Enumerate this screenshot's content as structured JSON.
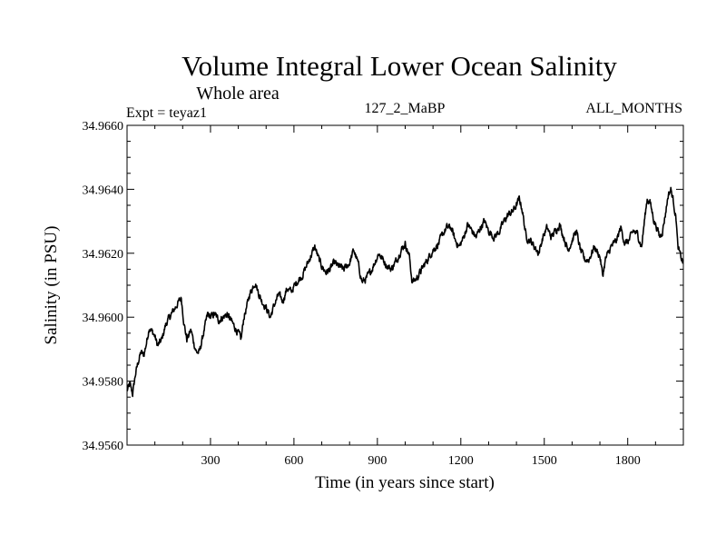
{
  "chart_data": {
    "type": "line",
    "title": "Volume Integral Lower Ocean Salinity",
    "subtitle": "Whole area",
    "experiment_label": "Expt = teyaz1",
    "center_label": "127_2_MaBP",
    "right_label": "ALL_MONTHS",
    "xlabel": "Time (in years since start)",
    "ylabel": "Salinity (in PSU)",
    "xlim": [
      0,
      2000
    ],
    "ylim": [
      34.956,
      34.966
    ],
    "x_ticks": [
      300,
      600,
      900,
      1200,
      1500,
      1800
    ],
    "x_tick_labels": [
      "300",
      "600",
      "900",
      "1200",
      "1500",
      "1800"
    ],
    "y_ticks": [
      34.956,
      34.958,
      34.96,
      34.962,
      34.964,
      34.966
    ],
    "y_tick_labels": [
      "34.9560",
      "34.9580",
      "34.9600",
      "34.9620",
      "34.9640",
      "34.9660"
    ],
    "grid": false,
    "series": [
      {
        "name": "salinity",
        "color": "#000000",
        "x": [
          0,
          10,
          20,
          30,
          40,
          50,
          60,
          70,
          80,
          100,
          110,
          125,
          140,
          160,
          180,
          195,
          205,
          215,
          230,
          240,
          250,
          260,
          280,
          290,
          300,
          315,
          330,
          345,
          360,
          380,
          400,
          410,
          420,
          430,
          440,
          460,
          475,
          485,
          500,
          515,
          530,
          545,
          560,
          575,
          590,
          610,
          630,
          645,
          660,
          675,
          690,
          700,
          715,
          730,
          745,
          760,
          780,
          800,
          815,
          830,
          845,
          860,
          880,
          895,
          905,
          920,
          935,
          950,
          970,
          985,
          1000,
          1015,
          1025,
          1040,
          1060,
          1080,
          1100,
          1120,
          1135,
          1150,
          1165,
          1180,
          1195,
          1210,
          1225,
          1240,
          1255,
          1270,
          1285,
          1300,
          1320,
          1340,
          1355,
          1370,
          1385,
          1400,
          1410,
          1420,
          1435,
          1450,
          1465,
          1480,
          1495,
          1510,
          1525,
          1540,
          1555,
          1570,
          1585,
          1600,
          1615,
          1630,
          1645,
          1660,
          1680,
          1700,
          1710,
          1720,
          1740,
          1760,
          1775,
          1790,
          1805,
          1820,
          1835,
          1850,
          1860,
          1870,
          1880,
          1895,
          1905,
          1915,
          1925,
          1935,
          1945,
          1955,
          1965,
          1975,
          1980,
          1990,
          2000
        ],
        "values": [
          34.9577,
          34.9579,
          34.9576,
          34.9582,
          34.9586,
          34.9589,
          34.9588,
          34.9592,
          34.9597,
          34.9594,
          34.9591,
          34.9593,
          34.9598,
          34.9601,
          34.9604,
          34.9606,
          34.9598,
          34.9593,
          34.9596,
          34.9592,
          34.9589,
          34.9589,
          34.9597,
          34.9601,
          34.96,
          34.9601,
          34.9599,
          34.96,
          34.9601,
          34.9598,
          34.9595,
          34.9593,
          34.96,
          34.9603,
          34.9607,
          34.9611,
          34.9607,
          34.9605,
          34.9603,
          34.96,
          34.9604,
          34.9607,
          34.9605,
          34.9609,
          34.9608,
          34.9611,
          34.9613,
          34.9616,
          34.9619,
          34.9622,
          34.9618,
          34.9616,
          34.9614,
          34.9615,
          34.9617,
          34.9616,
          34.9615,
          34.9617,
          34.9621,
          34.9617,
          34.9611,
          34.9612,
          34.9615,
          34.9618,
          34.962,
          34.9618,
          34.9616,
          34.9615,
          34.9618,
          34.9621,
          34.9623,
          34.9619,
          34.9611,
          34.9612,
          34.9615,
          34.9618,
          34.9621,
          34.9623,
          34.9626,
          34.9628,
          34.9628,
          34.9624,
          34.9622,
          34.9625,
          34.9629,
          34.9627,
          34.9625,
          34.9628,
          34.963,
          34.9627,
          34.9625,
          34.9627,
          34.963,
          34.9632,
          34.9633,
          34.9635,
          34.9637,
          34.9634,
          34.9625,
          34.9624,
          34.9622,
          34.962,
          34.9625,
          34.9628,
          34.9625,
          34.9627,
          34.9629,
          34.9625,
          34.9621,
          34.9624,
          34.9627,
          34.9621,
          34.9618,
          34.9618,
          34.9622,
          34.9619,
          34.9613,
          34.9618,
          34.9622,
          34.9624,
          34.9628,
          34.9623,
          34.9624,
          34.9627,
          34.9626,
          34.9622,
          34.963,
          34.9637,
          34.9636,
          34.963,
          34.9628,
          34.9625,
          34.9627,
          34.9632,
          34.9638,
          34.964,
          34.9636,
          34.963,
          34.9622,
          34.9619,
          34.9617
        ]
      }
    ]
  }
}
